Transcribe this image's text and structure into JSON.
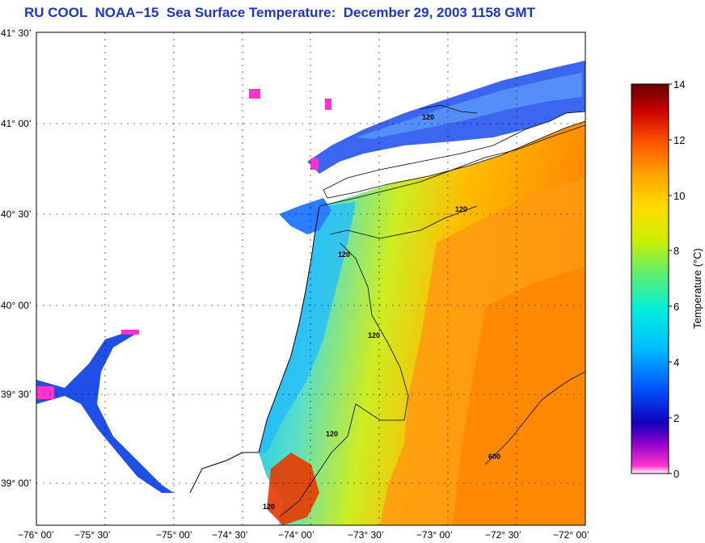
{
  "title": "RU COOL  NOAA−15  Sea Surface Temperature:  December 29, 2003 1158 GMT",
  "axes": {
    "lat_labels": [
      "41° 30’",
      "41° 00’",
      "40° 30’",
      "40° 00’",
      "39° 30’",
      "39° 00’"
    ],
    "lon_labels": [
      "−76° 00’",
      "−75° 30’",
      "−75° 00’",
      "−74° 30’",
      "−74° 00’",
      "−73° 30’",
      "−73° 00’",
      "−72° 30’",
      "−72° 00’"
    ]
  },
  "colorbar": {
    "label": "Temperature (°C)",
    "ticks": [
      "0",
      "2",
      "4",
      "6",
      "8",
      "10",
      "12",
      "14"
    ],
    "range": [
      0,
      14
    ],
    "colors": [
      "#ff33cc",
      "#3300cc",
      "#0033ff",
      "#00aaff",
      "#00eedd",
      "#55ee66",
      "#ccee00",
      "#ffcc00",
      "#ff8800",
      "#ff3300",
      "#cc0000",
      "#660000"
    ]
  },
  "contours": {
    "labels": [
      "120",
      "120",
      "120",
      "120",
      "120",
      "120",
      "600"
    ]
  },
  "colors": {
    "title": "#1a36c9",
    "land": "#ffffff",
    "cold_bay": "#2255ee",
    "cloud": "#ff33cc"
  }
}
